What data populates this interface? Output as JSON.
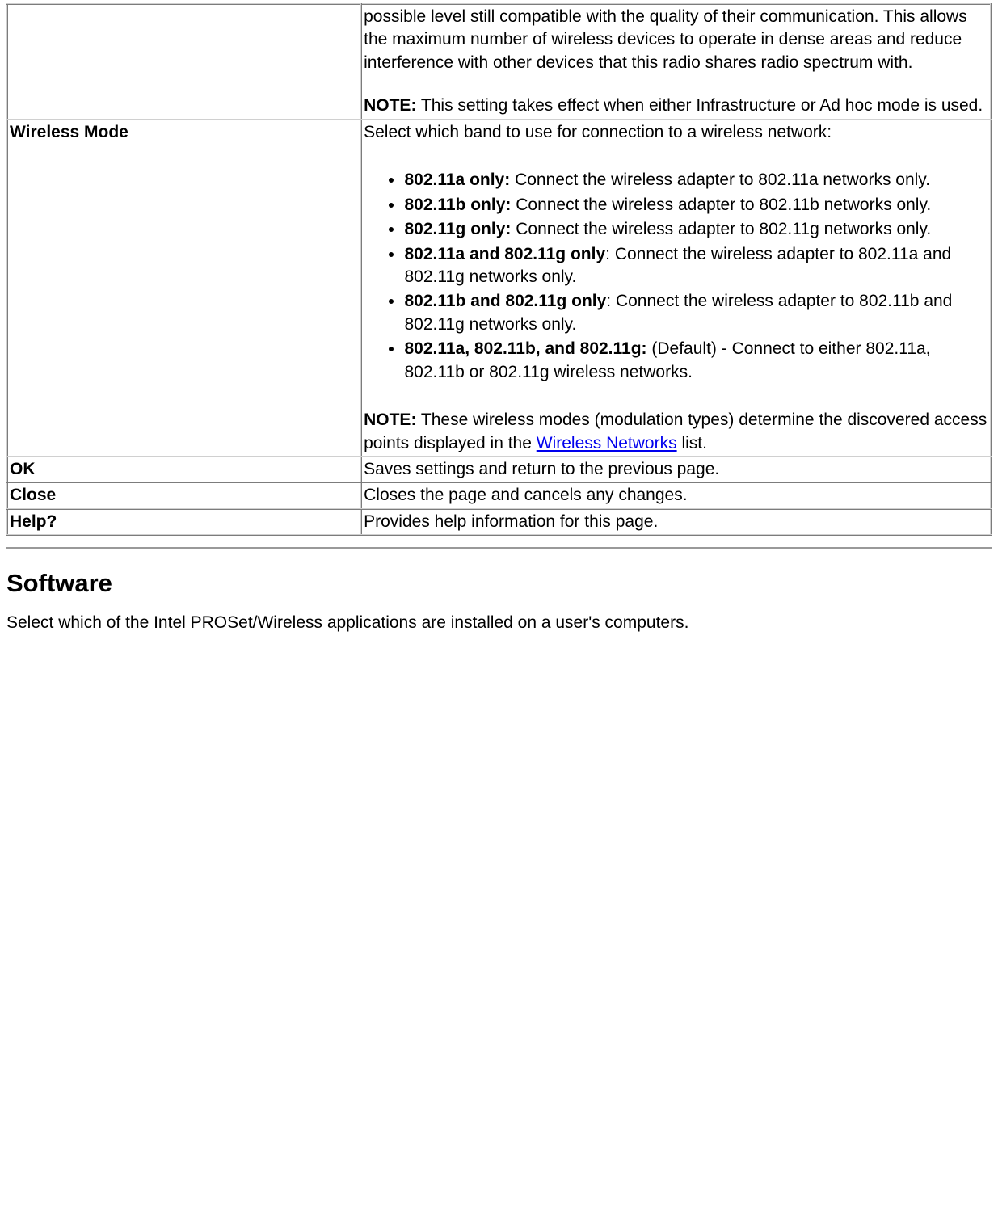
{
  "table": {
    "rows": [
      {
        "label": "",
        "top_text": "possible level still compatible with the quality of their communication. This allows the maximum number of wireless devices to operate in dense areas and reduce interference with other devices that this radio shares radio spectrum with.",
        "note_label": "NOTE:",
        "note_text": " This setting takes effect when either Infrastructure or Ad hoc mode is used."
      },
      {
        "label": "Wireless Mode",
        "intro": "Select which band to use for connection to a wireless network:",
        "items": [
          {
            "bold": "802.11a only:",
            "rest": " Connect the wireless adapter to 802.11a networks only."
          },
          {
            "bold": "802.11b only:",
            "rest": " Connect the wireless adapter to 802.11b networks only."
          },
          {
            "bold": "802.11g only:",
            "rest": " Connect the wireless adapter to 802.11g networks only."
          },
          {
            "bold": "802.11a and 802.11g only",
            "rest": ": Connect the wireless adapter to 802.11a and 802.11g networks only."
          },
          {
            "bold": "802.11b and 802.11g only",
            "rest": ": Connect the wireless adapter to 802.11b and 802.11g networks only."
          },
          {
            "bold": "802.11a, 802.11b, and 802.11g:",
            "rest": " (Default) - Connect to either 802.11a, 802.11b or 802.11g wireless networks."
          }
        ],
        "note_label": "NOTE:",
        "note_before_link": " These wireless modes (modulation types) determine the discovered access points displayed in the ",
        "note_link_text": "Wireless Networks",
        "note_after_link": " list."
      },
      {
        "label": "OK",
        "desc": "Saves settings and return to the previous page."
      },
      {
        "label": "Close",
        "desc": "Closes the page and cancels any changes."
      },
      {
        "label": "Help?",
        "desc": "Provides help information for this page."
      }
    ]
  },
  "section": {
    "heading": "Software",
    "paragraph": "Select which of the Intel PROSet/Wireless applications are installed on a user's computers."
  }
}
